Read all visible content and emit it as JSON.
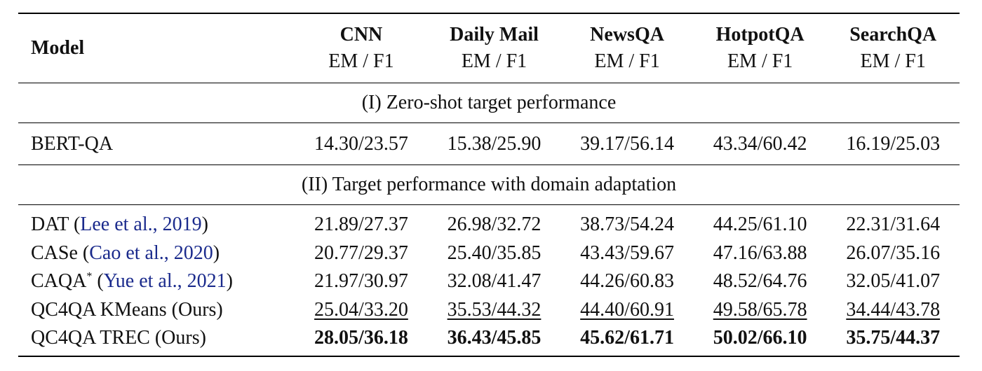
{
  "header": {
    "model_label": "Model",
    "metric_label": "EM / F1",
    "datasets": [
      "CNN",
      "Daily Mail",
      "NewsQA",
      "HotpotQA",
      "SearchQA"
    ]
  },
  "sections": {
    "zero_shot": "(I) Zero-shot target performance",
    "domain_adaptation": "(II) Target performance with domain adaptation"
  },
  "rows": {
    "bert": {
      "model": "BERT-QA",
      "values": [
        "14.30/23.57",
        "15.38/25.90",
        "39.17/56.14",
        "43.34/60.42",
        "16.19/25.03"
      ]
    },
    "dat": {
      "model": "DAT",
      "cite": "Lee et al., 2019",
      "values": [
        "21.89/27.37",
        "26.98/32.72",
        "38.73/54.24",
        "44.25/61.10",
        "22.31/31.64"
      ]
    },
    "case": {
      "model": "CASe",
      "cite": "Cao et al., 2020",
      "values": [
        "20.77/29.37",
        "25.40/35.85",
        "43.43/59.67",
        "47.16/63.88",
        "26.07/35.16"
      ]
    },
    "caqa": {
      "model": "CAQA",
      "mark": "*",
      "cite": "Yue et al., 2021",
      "values": [
        "21.97/30.97",
        "32.08/41.47",
        "44.26/60.83",
        "48.52/64.76",
        "32.05/41.07"
      ]
    },
    "kmeans": {
      "model": "QC4QA KMeans (Ours)",
      "values": [
        "25.04/33.20",
        "35.53/44.32",
        "44.40/60.91",
        "49.58/65.78",
        "34.44/43.78"
      ]
    },
    "trec": {
      "model": "QC4QA TREC (Ours)",
      "values": [
        "28.05/36.18",
        "36.43/45.85",
        "45.62/61.71",
        "50.02/66.10",
        "35.75/44.37"
      ]
    }
  }
}
